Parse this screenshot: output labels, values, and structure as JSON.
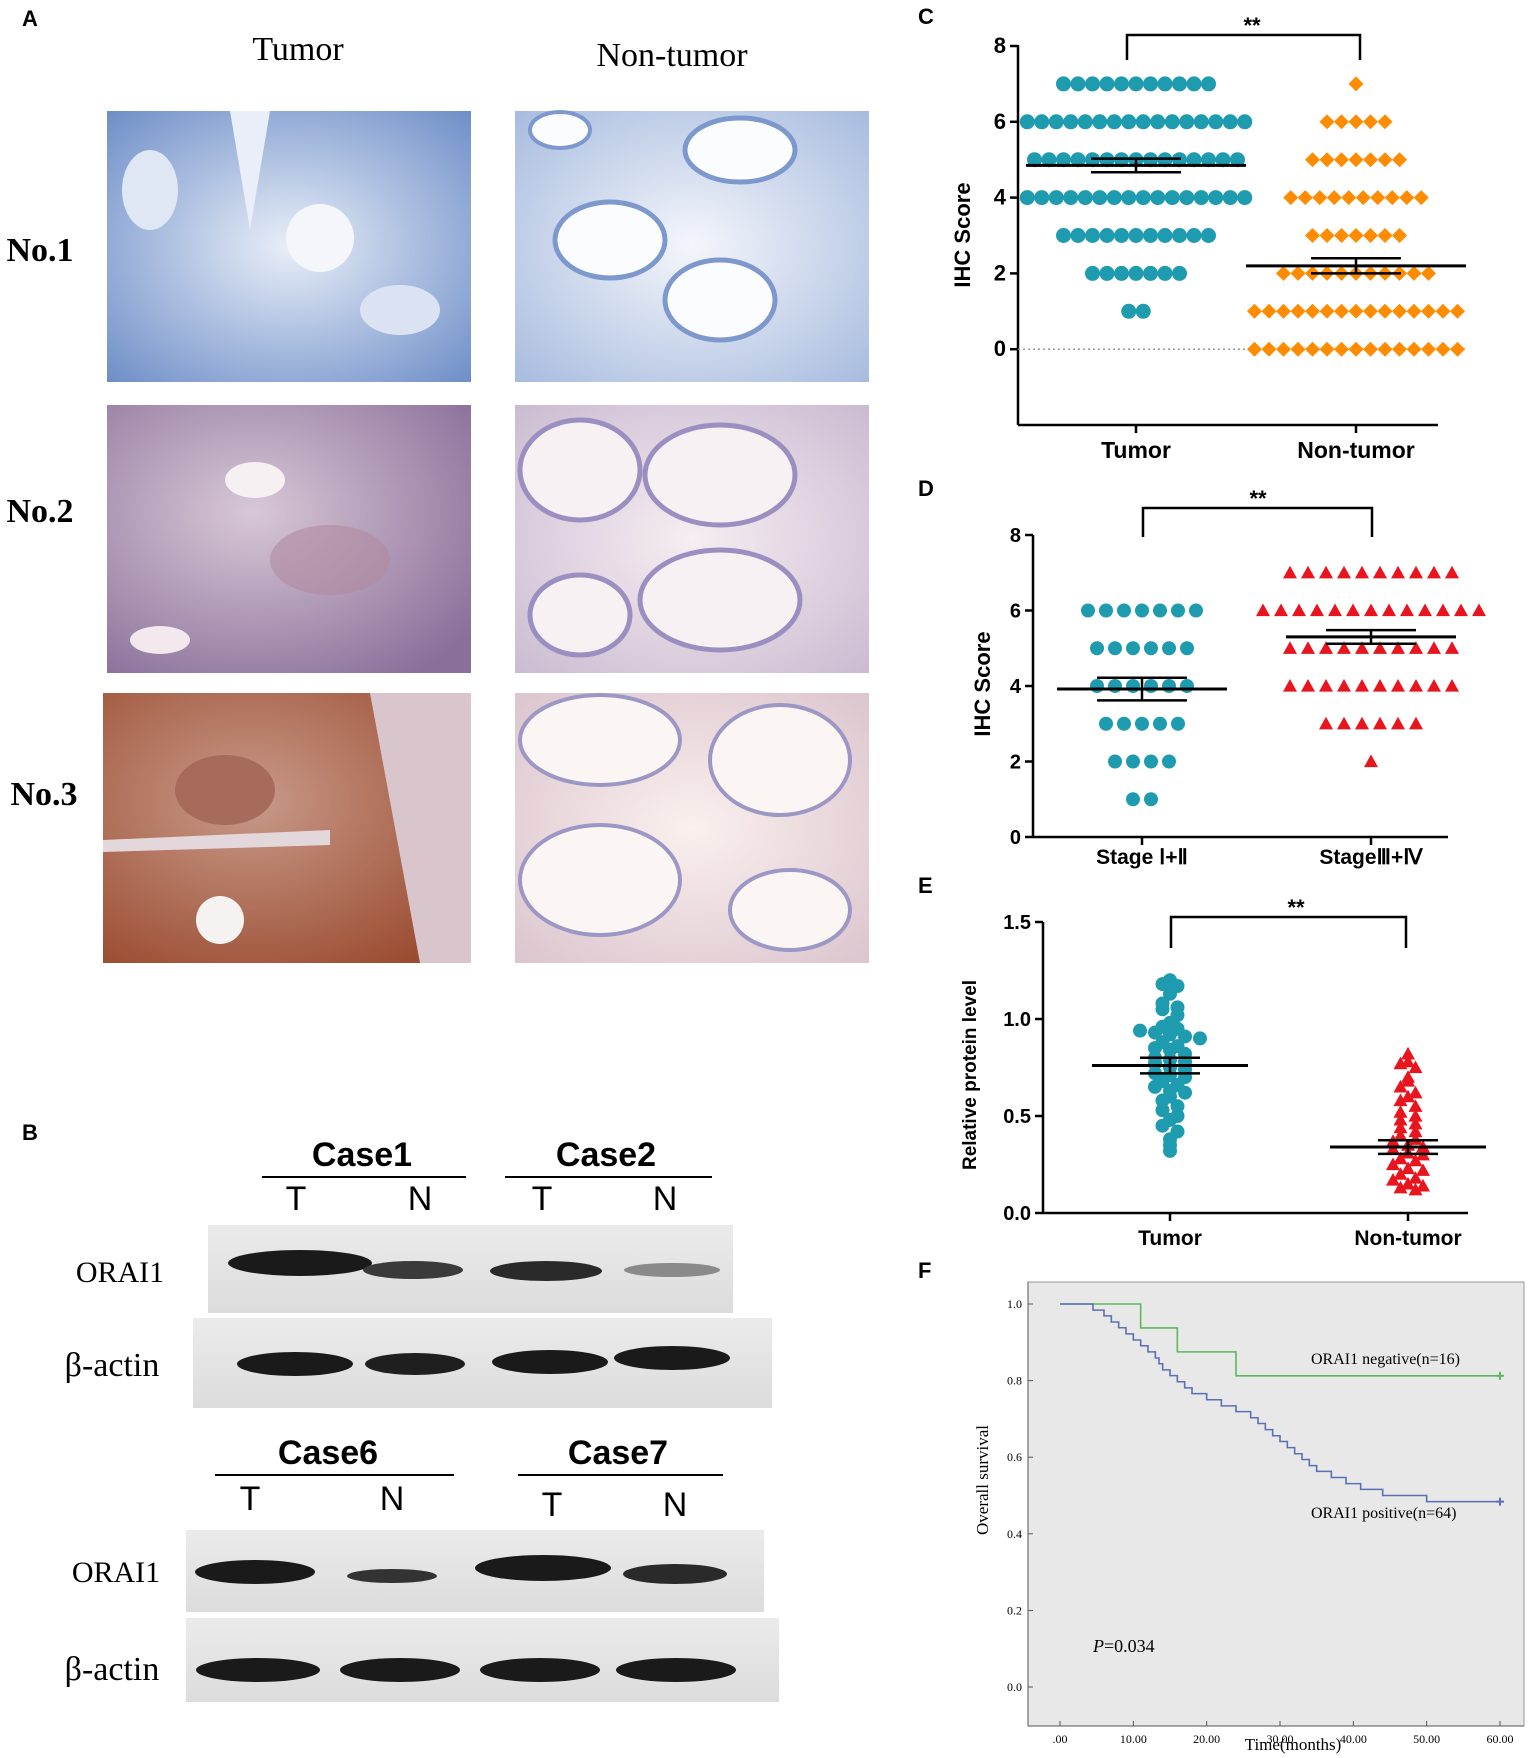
{
  "panels": {
    "A": {
      "label": "A",
      "col_headers": [
        "Tumor",
        "Non-tumor"
      ],
      "row_labels": [
        "No.1",
        "No.2",
        "No.3"
      ]
    },
    "B": {
      "label": "B",
      "top": {
        "cases": [
          "Case1",
          "Case2"
        ],
        "lanes": [
          "T",
          "N",
          "T",
          "N"
        ],
        "rows": [
          "ORAI1",
          "β-actin"
        ]
      },
      "bottom": {
        "cases": [
          "Case6",
          "Case7"
        ],
        "lanes": [
          "T",
          "N",
          "T",
          "N"
        ],
        "rows": [
          "ORAI1",
          "β-actin"
        ]
      }
    },
    "C": {
      "label": "C",
      "signif": "**"
    },
    "D": {
      "label": "D",
      "signif": "**"
    },
    "E": {
      "label": "E",
      "signif": "**"
    },
    "F": {
      "label": "F",
      "pvalue_prefix": "P",
      "pvalue_rest": "=0.034"
    }
  },
  "colors": {
    "teal": "#1f9bb0",
    "orange": "#ff8c00",
    "red": "#e8141e",
    "green": "#5cb85c",
    "blue": "#5b6fb5",
    "km_bg": "#e8e8e8"
  },
  "chart_data": [
    {
      "panel": "C",
      "type": "scatter",
      "ylabel": "IHC Score",
      "categories": [
        "Tumor",
        "Non-tumor"
      ],
      "ylim": [
        -2,
        8
      ],
      "yticks": [
        0,
        2,
        4,
        6,
        8
      ],
      "reference_line": 0,
      "series": [
        {
          "category": "Tumor",
          "marker": "circle",
          "color": "#1f9bb0",
          "mean": 4.85,
          "sem": 0.18,
          "values_by_level": [
            [
              7,
              11
            ],
            [
              6,
              16
            ],
            [
              5,
              15
            ],
            [
              4,
              16
            ],
            [
              3,
              11
            ],
            [
              2,
              7
            ],
            [
              1,
              2
            ]
          ]
        },
        {
          "category": "Non-tumor",
          "marker": "diamond",
          "color": "#ff8c00",
          "mean": 2.2,
          "sem": 0.2,
          "values_by_level": [
            [
              7,
              1
            ],
            [
              6,
              5
            ],
            [
              5,
              7
            ],
            [
              4,
              10
            ],
            [
              3,
              7
            ],
            [
              2,
              11
            ],
            [
              1,
              15
            ],
            [
              0,
              15
            ]
          ]
        }
      ]
    },
    {
      "panel": "D",
      "type": "scatter",
      "ylabel": "IHC Score",
      "categories": [
        "Stage Ⅰ+Ⅱ",
        "StageⅢ+Ⅳ"
      ],
      "ylim": [
        0,
        8
      ],
      "yticks": [
        0,
        2,
        4,
        6,
        8
      ],
      "series": [
        {
          "category": "Stage Ⅰ+Ⅱ",
          "marker": "circle",
          "color": "#1f9bb0",
          "mean": 3.92,
          "sem": 0.3,
          "values_by_level": [
            [
              6,
              7
            ],
            [
              5,
              6
            ],
            [
              4,
              6
            ],
            [
              3,
              5
            ],
            [
              2,
              4
            ],
            [
              1,
              2
            ]
          ]
        },
        {
          "category": "StageⅢ+Ⅳ",
          "marker": "triangle",
          "color": "#e8141e",
          "mean": 5.3,
          "sem": 0.18,
          "values_by_level": [
            [
              7,
              10
            ],
            [
              6,
              13
            ],
            [
              5,
              10
            ],
            [
              4,
              10
            ],
            [
              3,
              6
            ],
            [
              2,
              1
            ]
          ]
        }
      ]
    },
    {
      "panel": "E",
      "type": "scatter",
      "ylabel": "Relative protein level",
      "categories": [
        "Tumor",
        "Non-tumor"
      ],
      "ylim": [
        0.0,
        1.5
      ],
      "yticks": [
        "0.0",
        "0.5",
        "1.0",
        "1.5"
      ],
      "series": [
        {
          "category": "Tumor",
          "marker": "circle",
          "color": "#1f9bb0",
          "mean": 0.76,
          "sem": 0.04,
          "values": [
            1.2,
            1.18,
            1.17,
            1.13,
            1.08,
            1.06,
            1.05,
            1.02,
            0.98,
            0.96,
            0.95,
            0.94,
            0.93,
            0.92,
            0.91,
            0.9,
            0.88,
            0.86,
            0.85,
            0.84,
            0.82,
            0.8,
            0.79,
            0.78,
            0.77,
            0.75,
            0.74,
            0.72,
            0.71,
            0.7,
            0.68,
            0.66,
            0.65,
            0.63,
            0.62,
            0.6,
            0.58,
            0.55,
            0.53,
            0.5,
            0.48,
            0.45,
            0.42,
            0.38,
            0.35,
            0.32
          ]
        },
        {
          "category": "Non-tumor",
          "marker": "triangle",
          "color": "#e8141e",
          "mean": 0.34,
          "sem": 0.035,
          "values": [
            0.82,
            0.78,
            0.77,
            0.75,
            0.7,
            0.68,
            0.65,
            0.62,
            0.6,
            0.58,
            0.55,
            0.52,
            0.5,
            0.48,
            0.46,
            0.44,
            0.42,
            0.4,
            0.38,
            0.37,
            0.35,
            0.34,
            0.33,
            0.31,
            0.3,
            0.28,
            0.27,
            0.25,
            0.23,
            0.22,
            0.2,
            0.18,
            0.17,
            0.15,
            0.14,
            0.13,
            0.12
          ]
        }
      ]
    },
    {
      "panel": "F",
      "type": "line",
      "xlabel": "Time(months)",
      "ylabel": "Overall survival",
      "xlim": [
        0,
        60
      ],
      "ylim": [
        0,
        1
      ],
      "xticks": [
        ".00",
        "10.00",
        "20.00",
        "30.00",
        "40.00",
        "50.00",
        "60.00"
      ],
      "yticks": [
        "0.0",
        "0.2",
        "0.4",
        "0.6",
        "0.8",
        "1.0"
      ],
      "series": [
        {
          "name": "ORAI1 negative(n=16)",
          "color": "#5cb85c",
          "steps": [
            [
              0,
              1.0
            ],
            [
              11,
              0.9375
            ],
            [
              16,
              0.875
            ],
            [
              24,
              0.8125
            ],
            [
              60,
              0.8125
            ]
          ]
        },
        {
          "name": "ORAI1 positive(n=64)",
          "color": "#5b6fb5",
          "steps": [
            [
              0,
              1.0
            ],
            [
              4.5,
              0.984
            ],
            [
              6,
              0.969
            ],
            [
              7,
              0.953
            ],
            [
              8,
              0.938
            ],
            [
              9,
              0.922
            ],
            [
              10,
              0.906
            ],
            [
              11,
              0.891
            ],
            [
              12,
              0.875
            ],
            [
              13,
              0.859
            ],
            [
              13.5,
              0.844
            ],
            [
              14,
              0.828
            ],
            [
              15,
              0.813
            ],
            [
              16,
              0.797
            ],
            [
              17,
              0.781
            ],
            [
              18,
              0.766
            ],
            [
              20,
              0.75
            ],
            [
              22,
              0.734
            ],
            [
              24,
              0.719
            ],
            [
              26,
              0.703
            ],
            [
              27,
              0.688
            ],
            [
              28,
              0.672
            ],
            [
              29,
              0.656
            ],
            [
              30,
              0.641
            ],
            [
              31,
              0.625
            ],
            [
              32,
              0.609
            ],
            [
              33,
              0.594
            ],
            [
              34,
              0.578
            ],
            [
              35,
              0.563
            ],
            [
              37,
              0.547
            ],
            [
              39,
              0.531
            ],
            [
              41,
              0.516
            ],
            [
              44,
              0.5
            ],
            [
              50,
              0.484
            ],
            [
              60,
              0.484
            ]
          ]
        }
      ]
    }
  ]
}
